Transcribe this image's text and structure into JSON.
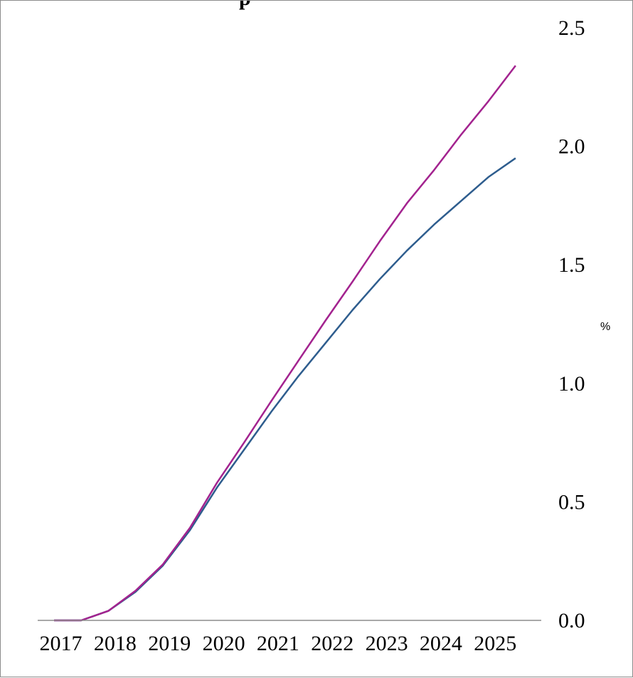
{
  "chart_data": {
    "type": "line",
    "title": "p",
    "ylabel": "%",
    "x_tick_labels": [
      "2017",
      "2018",
      "2019",
      "2020",
      "2021",
      "2022",
      "2023",
      "2024",
      "2025"
    ],
    "y_tick_labels": [
      "0.0",
      "0.5",
      "1.0",
      "1.5",
      "2.0",
      "2.5"
    ],
    "xlim": [
      2017,
      2025.75
    ],
    "ylim": [
      0,
      2.5
    ],
    "y_axis_side": "right",
    "grid": false,
    "legend": "none",
    "x": [
      2017.0,
      2017.5,
      2018.0,
      2018.5,
      2019.0,
      2019.5,
      2020.0,
      2020.5,
      2021.0,
      2021.5,
      2022.0,
      2022.5,
      2023.0,
      2023.5,
      2024.0,
      2024.5,
      2025.0,
      2025.5
    ],
    "series": [
      {
        "color": "#2e5d8e",
        "values": [
          0.0,
          0.0,
          0.04,
          0.12,
          0.23,
          0.38,
          0.56,
          0.72,
          0.88,
          1.03,
          1.17,
          1.31,
          1.44,
          1.56,
          1.67,
          1.77,
          1.87,
          1.95
        ]
      },
      {
        "color": "#a3238f",
        "values": [
          0.0,
          0.0,
          0.04,
          0.125,
          0.235,
          0.39,
          0.58,
          0.75,
          0.925,
          1.095,
          1.265,
          1.43,
          1.6,
          1.76,
          1.9,
          2.05,
          2.19,
          2.34
        ]
      }
    ]
  }
}
